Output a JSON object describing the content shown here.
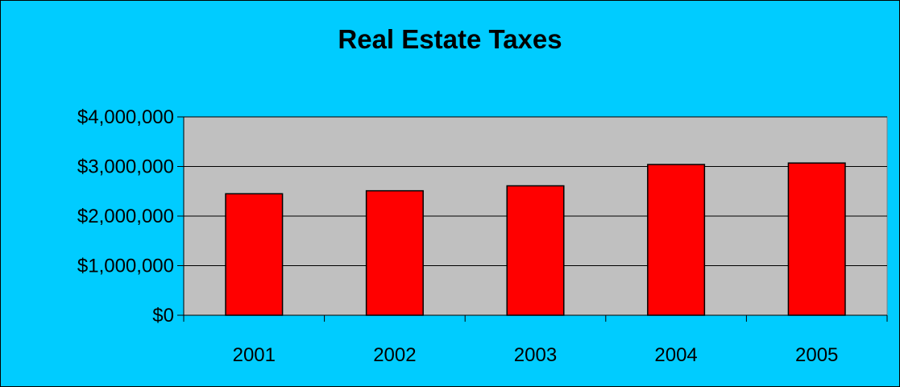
{
  "chart_data": {
    "type": "bar",
    "title": "Real Estate Taxes",
    "categories": [
      "2001",
      "2002",
      "2003",
      "2004",
      "2005"
    ],
    "series": [
      {
        "values": [
          2450000,
          2510000,
          2610000,
          3040000,
          3070000
        ]
      }
    ],
    "ylim": [
      0,
      4000000
    ],
    "yticks": [
      0,
      1000000,
      2000000,
      3000000,
      4000000
    ],
    "ytick_labels": [
      "$0",
      "$1,000,000",
      "$2,000,000",
      "$3,000,000",
      "$4,000,000"
    ],
    "grid": true,
    "legend": "none",
    "colors": {
      "background": "#00ccff",
      "plot_area": "#c0c0c0",
      "bar": "#ff0000",
      "bar_outline": "#000000",
      "gridline": "#000000"
    }
  }
}
